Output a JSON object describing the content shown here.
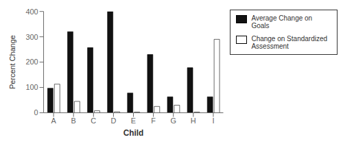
{
  "chart_data": {
    "type": "bar",
    "xlabel": "Child",
    "ylabel": "Percent Change",
    "categories": [
      "A",
      "B",
      "C",
      "D",
      "E",
      "F",
      "G",
      "H",
      "I"
    ],
    "series": [
      {
        "name": "Average Change on Goals",
        "color": "#111111",
        "values": [
          97,
          320,
          257,
          400,
          78,
          230,
          63,
          178,
          63
        ]
      },
      {
        "name": "Change on Standardized\nAssessment",
        "color": "#ffffff",
        "values": [
          113,
          45,
          8,
          4,
          3,
          25,
          30,
          3,
          290
        ]
      }
    ],
    "ylim": [
      0,
      400
    ],
    "yticks": [
      0,
      100,
      200,
      300,
      400
    ],
    "grid": false,
    "legend": "right"
  }
}
